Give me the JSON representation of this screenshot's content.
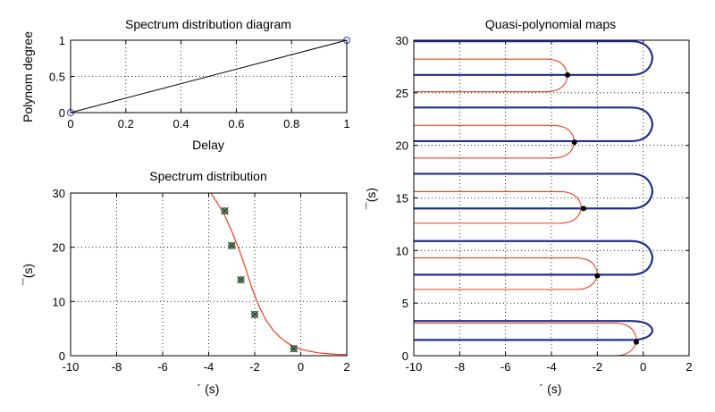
{
  "chart_data": [
    {
      "type": "line",
      "title": "Spectrum distribution diagram",
      "xlabel": "Delay",
      "ylabel": "Polynom degree",
      "xlim": [
        0,
        1
      ],
      "ylim": [
        0,
        1
      ],
      "xticks": [
        "0",
        "0.2",
        "0.4",
        "0.6",
        "0.8",
        "1"
      ],
      "yticks": [
        "0",
        "0.5",
        "1"
      ],
      "grid": true,
      "line": {
        "x": [
          0,
          1
        ],
        "y": [
          0,
          1
        ],
        "color": "#000000"
      },
      "markers": {
        "x": [
          0,
          1
        ],
        "y": [
          0,
          1
        ],
        "color": "#3a3ac8"
      }
    },
    {
      "type": "scatter",
      "title": "Spectrum distribution",
      "xlabel": "´  (s)",
      "ylabel": "¯(s)",
      "xlim": [
        -10,
        2
      ],
      "ylim": [
        0,
        30
      ],
      "xticks": [
        "-10",
        "-8",
        "-6",
        "-4",
        "-2",
        "0",
        "2"
      ],
      "yticks": [
        "0",
        "10",
        "20",
        "30"
      ],
      "grid": true,
      "curve": {
        "color": "#e8401c",
        "x": [
          -3.9,
          -3.6,
          -3.3,
          -3.0,
          -2.7,
          -2.4,
          -2.1,
          -1.8,
          -1.5,
          -1.2,
          -0.9,
          -0.6,
          -0.3,
          0.0,
          0.4,
          0.8,
          1.2,
          1.6,
          2.0
        ],
        "y": [
          30.0,
          28.0,
          25.8,
          23.0,
          19.8,
          16.2,
          12.2,
          9.0,
          6.5,
          4.7,
          3.4,
          2.4,
          1.7,
          1.2,
          0.8,
          0.5,
          0.35,
          0.25,
          0.2
        ]
      },
      "points": {
        "color": "#2e6b2e",
        "x": [
          -3.3,
          -3.0,
          -2.6,
          -2.0,
          -0.3
        ],
        "y": [
          26.7,
          20.3,
          14.0,
          7.6,
          1.3
        ]
      }
    },
    {
      "type": "line",
      "title": "Quasi-polynomial maps",
      "xlabel": "´  (s)",
      "ylabel": "¯(s)",
      "xlim": [
        -10,
        2
      ],
      "ylim": [
        0,
        30
      ],
      "xticks": [
        "-10",
        "-8",
        "-6",
        "-4",
        "-2",
        "0",
        "2"
      ],
      "yticks": [
        "0",
        "5",
        "10",
        "15",
        "20",
        "25",
        "30"
      ],
      "grid": true,
      "blue_color": "#1f2f8c",
      "red_color": "#e8401c",
      "blue_loops": [
        {
          "y_top": 3.3,
          "y_bottom": 1.5,
          "x_tip": 0.4
        },
        {
          "y_top": 10.9,
          "y_bottom": 7.7,
          "x_tip": 0.4
        },
        {
          "y_top": 17.3,
          "y_bottom": 14.0,
          "x_tip": 0.4
        },
        {
          "y_top": 23.6,
          "y_bottom": 20.4,
          "x_tip": 0.4
        },
        {
          "y_top": 29.9,
          "y_bottom": 26.7,
          "x_tip": 0.4
        }
      ],
      "red_loops": [
        {
          "y_top": 3.1,
          "y_bottom": 0.0,
          "x_tip": -0.3
        },
        {
          "y_top": 9.3,
          "y_bottom": 6.3,
          "x_tip": -2.0
        },
        {
          "y_top": 15.6,
          "y_bottom": 12.6,
          "x_tip": -2.7
        },
        {
          "y_top": 21.9,
          "y_bottom": 18.8,
          "x_tip": -3.0
        },
        {
          "y_top": 28.2,
          "y_bottom": 25.1,
          "x_tip": -3.3
        }
      ],
      "intersections": {
        "x": [
          -0.3,
          -2.0,
          -2.6,
          -3.0,
          -3.3
        ],
        "y": [
          1.3,
          7.6,
          14.0,
          20.3,
          26.7
        ]
      }
    }
  ]
}
